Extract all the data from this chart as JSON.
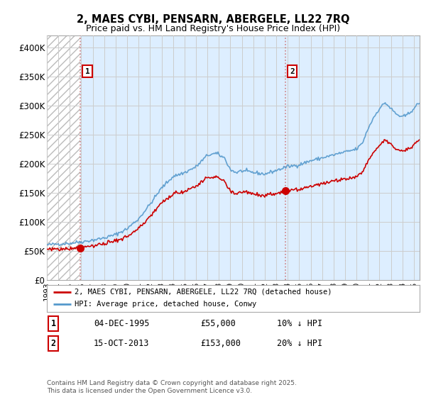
{
  "title": "2, MAES CYBI, PENSARN, ABERGELE, LL22 7RQ",
  "subtitle": "Price paid vs. HM Land Registry's House Price Index (HPI)",
  "title_fontsize": 10.5,
  "subtitle_fontsize": 9,
  "xlim_start": 1993.0,
  "xlim_end": 2025.5,
  "ylim_min": 0,
  "ylim_max": 420000,
  "yticks": [
    0,
    50000,
    100000,
    150000,
    200000,
    250000,
    300000,
    350000,
    400000
  ],
  "ytick_labels": [
    "£0",
    "£50K",
    "£100K",
    "£150K",
    "£200K",
    "£250K",
    "£300K",
    "£350K",
    "£400K"
  ],
  "hatch_end_year": 1995.92,
  "marker1_x": 1995.92,
  "marker1_y": 55000,
  "marker1_label": "1",
  "marker2_x": 2013.79,
  "marker2_y": 153000,
  "marker2_label": "2",
  "sale1_date": "04-DEC-1995",
  "sale1_price": "£55,000",
  "sale1_hpi": "10% ↓ HPI",
  "sale2_date": "15-OCT-2013",
  "sale2_price": "£153,000",
  "sale2_hpi": "20% ↓ HPI",
  "legend_line1": "2, MAES CYBI, PENSARN, ABERGELE, LL22 7RQ (detached house)",
  "legend_line2": "HPI: Average price, detached house, Conwy",
  "price_line_color": "#cc0000",
  "hpi_line_color": "#5599cc",
  "hpi_fill_color": "#ddeeff",
  "footer_text": "Contains HM Land Registry data © Crown copyright and database right 2025.\nThis data is licensed under the Open Government Licence v3.0.",
  "background_color": "#ffffff",
  "grid_color": "#cccccc",
  "hatch_color": "#bbbbbb"
}
